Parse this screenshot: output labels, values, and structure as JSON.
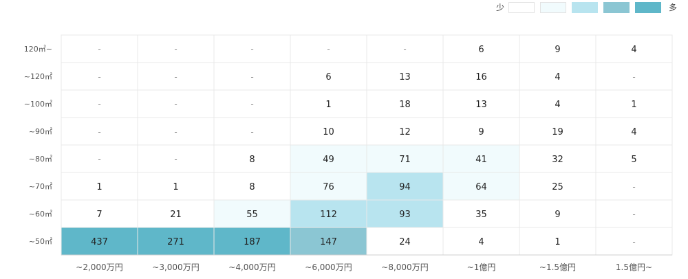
{
  "legend": {
    "low_label": "少",
    "high_label": "多",
    "colors": [
      "#ffffff",
      "#f1fbfd",
      "#b8e4ef",
      "#8bc6d3",
      "#5fb7c9"
    ]
  },
  "chart_data": {
    "type": "heatmap",
    "x_categories": [
      "~2,000万円",
      "~3,000万円",
      "~4,000万円",
      "~6,000万円",
      "~8,000万円",
      "~1億円",
      "~1.5億円",
      "1.5億円~"
    ],
    "y_categories": [
      "120㎡~",
      "~120㎡",
      "~100㎡",
      "~90㎡",
      "~80㎡",
      "~70㎡",
      "~60㎡",
      "~50㎡"
    ],
    "values": [
      [
        "-",
        "-",
        "-",
        "-",
        "-",
        "6",
        "9",
        "4"
      ],
      [
        "-",
        "-",
        "-",
        "6",
        "13",
        "16",
        "4",
        "-"
      ],
      [
        "-",
        "-",
        "-",
        "1",
        "18",
        "13",
        "4",
        "1"
      ],
      [
        "-",
        "-",
        "-",
        "10",
        "12",
        "9",
        "19",
        "4"
      ],
      [
        "-",
        "-",
        "8",
        "49",
        "71",
        "41",
        "32",
        "5"
      ],
      [
        "1",
        "1",
        "8",
        "76",
        "94",
        "64",
        "25",
        "-"
      ],
      [
        "7",
        "21",
        "55",
        "112",
        "93",
        "35",
        "9",
        "-"
      ],
      [
        "437",
        "271",
        "187",
        "147",
        "24",
        "4",
        "1",
        "-"
      ]
    ],
    "levels": [
      [
        0,
        0,
        0,
        0,
        0,
        0,
        0,
        0
      ],
      [
        0,
        0,
        0,
        0,
        0,
        0,
        0,
        0
      ],
      [
        0,
        0,
        0,
        0,
        0,
        0,
        0,
        0
      ],
      [
        0,
        0,
        0,
        0,
        0,
        0,
        0,
        0
      ],
      [
        0,
        0,
        0,
        1,
        1,
        1,
        0,
        0
      ],
      [
        0,
        0,
        0,
        1,
        2,
        1,
        0,
        0
      ],
      [
        0,
        0,
        1,
        2,
        2,
        0,
        0,
        0
      ],
      [
        4,
        4,
        4,
        3,
        0,
        0,
        0,
        0
      ]
    ]
  }
}
